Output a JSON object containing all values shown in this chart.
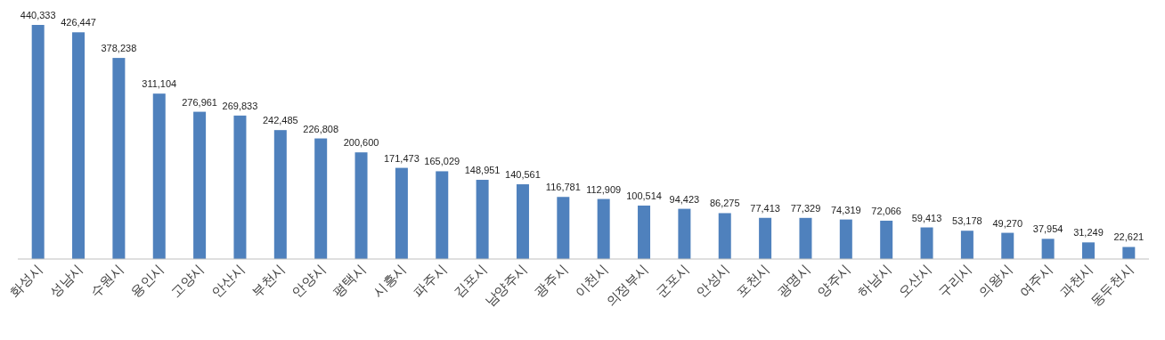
{
  "chart_data": {
    "type": "bar",
    "categories": [
      "화성시",
      "성남시",
      "수원시",
      "용인시",
      "고양시",
      "안산시",
      "부천시",
      "안양시",
      "평택시",
      "시흥시",
      "파주시",
      "김포시",
      "남양주시",
      "광주시",
      "이천시",
      "의정부시",
      "군포시",
      "안성시",
      "포천시",
      "광명시",
      "양주시",
      "하남시",
      "오산시",
      "구리시",
      "의왕시",
      "여주시",
      "과천시",
      "동두천시"
    ],
    "values": [
      440333,
      426447,
      378238,
      311104,
      276961,
      269833,
      242485,
      226808,
      200600,
      171473,
      165029,
      148951,
      140561,
      116781,
      112909,
      100514,
      94423,
      86275,
      77413,
      77329,
      74319,
      72066,
      59413,
      53178,
      49270,
      37954,
      31249,
      22621
    ],
    "value_labels": [
      "440,333",
      "426,447",
      "378,238",
      "311,104",
      "276,961",
      "269,833",
      "242,485",
      "226,808",
      "200,600",
      "171,473",
      "165,029",
      "148,951",
      "140,561",
      "116,781",
      "112,909",
      "100,514",
      "94,423",
      "86,275",
      "77,413",
      "77,329",
      "74,319",
      "72,066",
      "59,413",
      "53,178",
      "49,270",
      "37,954",
      "31,249",
      "22,621"
    ],
    "color": "#4f81bd"
  }
}
